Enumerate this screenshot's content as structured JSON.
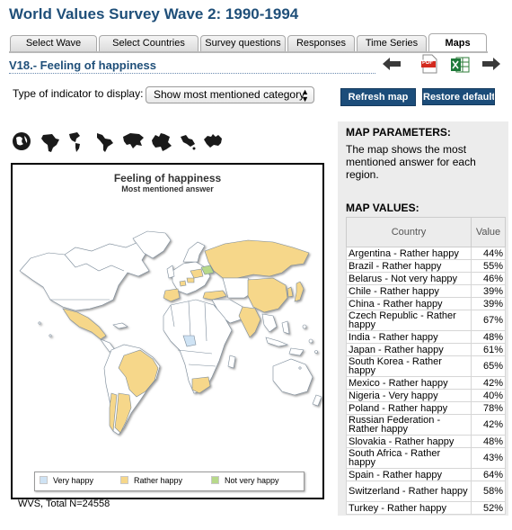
{
  "app_title": "World Values Survey Wave 2: 1990-1994",
  "tabs": [
    {
      "label": "Select Wave"
    },
    {
      "label": "Select Countries"
    },
    {
      "label": "Survey questions"
    },
    {
      "label": "Responses"
    },
    {
      "label": "Time Series"
    },
    {
      "label": "Maps"
    }
  ],
  "variable_title": "V18.- Feeling of happiness",
  "toolbar": {
    "back_icon": "arrow-left-icon",
    "pdf_icon": "pdf-icon",
    "pdf_text": "PDF",
    "excel_icon": "excel-icon",
    "forward_icon": "arrow-right-icon"
  },
  "indicator": {
    "label": "Type of indicator to display:",
    "selected": "Show most mentioned category"
  },
  "buttons": {
    "refresh": "Refresh map",
    "restore": "Restore defaults"
  },
  "region_icons": [
    "globe-icon",
    "africa-icon",
    "americas-icon",
    "latin-america-icon",
    "asia-icon",
    "europe-icon",
    "middle-east-icon",
    "oceania-icon"
  ],
  "map": {
    "title": "Feeling of happiness",
    "subtitle": "Most mentioned answer",
    "legend": [
      {
        "label": "Very happy",
        "color": "#cfe3f4"
      },
      {
        "label": "Rather happy",
        "color": "#f6d78a"
      },
      {
        "label": "Not very happy",
        "color": "#b7d98a"
      }
    ],
    "footer": "WVS, Total N=24558"
  },
  "params": {
    "heading": "MAP PARAMETERS:",
    "text": "The map shows the most mentioned answer for each region.",
    "values_heading": "MAP VALUES:",
    "col_country": "Country",
    "col_value": "Value",
    "rows": [
      {
        "country": "Argentina - Rather happy",
        "value": "44%"
      },
      {
        "country": "Brazil - Rather happy",
        "value": "55%"
      },
      {
        "country": "Belarus - Not very happy",
        "value": "46%"
      },
      {
        "country": "Chile - Rather happy",
        "value": "39%"
      },
      {
        "country": "China - Rather happy",
        "value": "39%"
      },
      {
        "country": "Czech Republic - Rather happy",
        "value": "67%"
      },
      {
        "country": "India - Rather happy",
        "value": "48%"
      },
      {
        "country": "Japan - Rather happy",
        "value": "61%"
      },
      {
        "country": "South Korea - Rather happy",
        "value": "65%"
      },
      {
        "country": "Mexico - Rather happy",
        "value": "42%"
      },
      {
        "country": "Nigeria - Very happy",
        "value": "40%"
      },
      {
        "country": "Poland - Rather happy",
        "value": "78%"
      },
      {
        "country": "Russian Federation - Rather happy",
        "value": "42%"
      },
      {
        "country": "Slovakia - Rather happy",
        "value": "48%"
      },
      {
        "country": "South Africa - Rather happy",
        "value": "43%"
      },
      {
        "country": "Spain - Rather happy",
        "value": "64%"
      },
      {
        "country": "Switzerland - Rather happy",
        "value": "58%"
      },
      {
        "country": "Turkey - Rather happy",
        "value": "52%"
      }
    ]
  }
}
